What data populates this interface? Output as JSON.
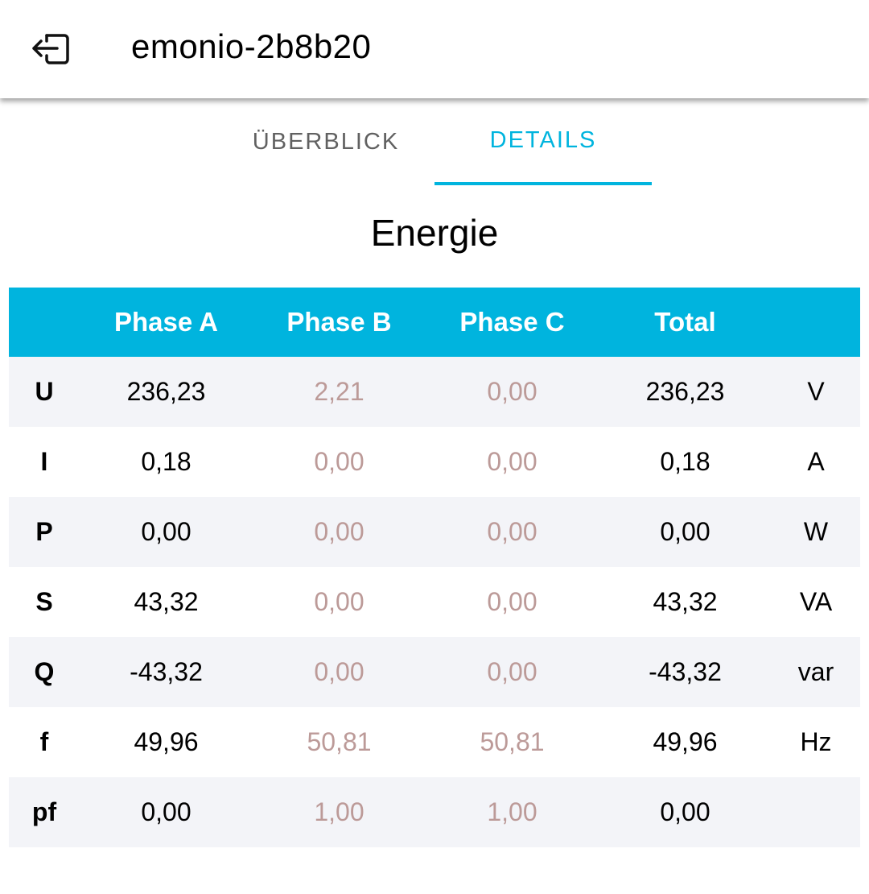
{
  "appbar": {
    "title": "emonio-2b8b20",
    "back_icon": "logout-icon"
  },
  "tabs": [
    {
      "label": "ÜBERBLICK",
      "active": false
    },
    {
      "label": "DETAILS",
      "active": true
    }
  ],
  "section_title": "Energie",
  "colors": {
    "accent": "#00b4de",
    "dim_value": "#bc9a98",
    "stripe": "#f3f4f8"
  },
  "table": {
    "headers": [
      "",
      "Phase A",
      "Phase B",
      "Phase C",
      "Total",
      ""
    ],
    "rows": [
      {
        "label": "U",
        "a": "236,23",
        "b": "2,21",
        "c": "0,00",
        "total": "236,23",
        "unit": "V"
      },
      {
        "label": "I",
        "a": "0,18",
        "b": "0,00",
        "c": "0,00",
        "total": "0,18",
        "unit": "A"
      },
      {
        "label": "P",
        "a": "0,00",
        "b": "0,00",
        "c": "0,00",
        "total": "0,00",
        "unit": "W"
      },
      {
        "label": "S",
        "a": "43,32",
        "b": "0,00",
        "c": "0,00",
        "total": "43,32",
        "unit": "VA"
      },
      {
        "label": "Q",
        "a": "-43,32",
        "b": "0,00",
        "c": "0,00",
        "total": "-43,32",
        "unit": "var"
      },
      {
        "label": "f",
        "a": "49,96",
        "b": "50,81",
        "c": "50,81",
        "total": "49,96",
        "unit": "Hz"
      },
      {
        "label": "pf",
        "a": "0,00",
        "b": "1,00",
        "c": "1,00",
        "total": "0,00",
        "unit": ""
      }
    ]
  }
}
